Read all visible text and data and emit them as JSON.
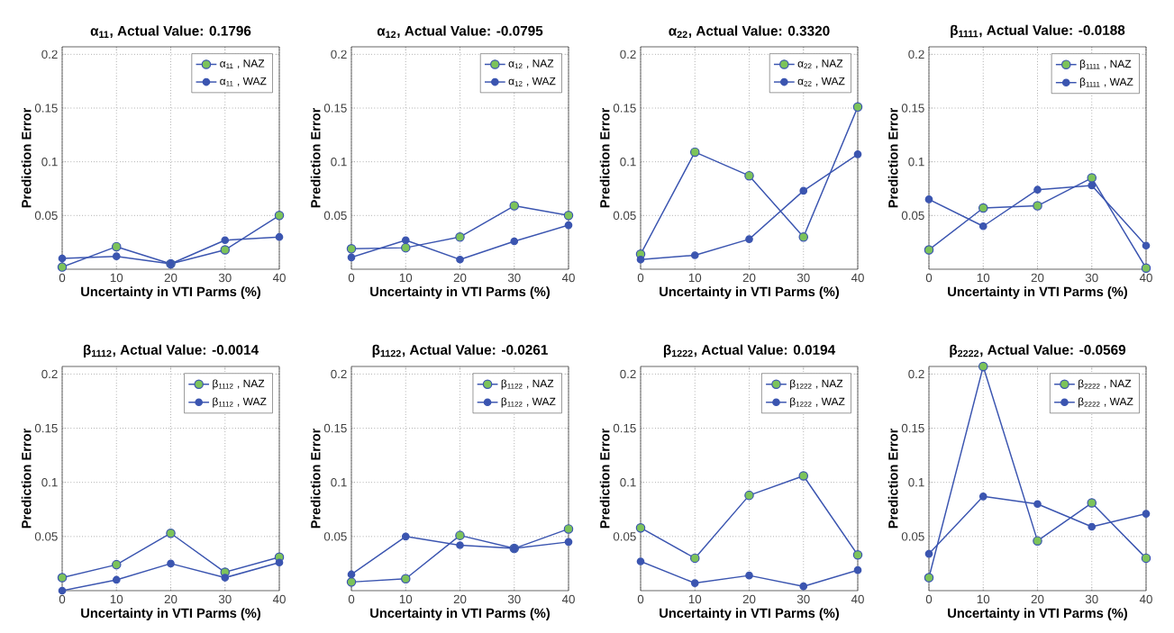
{
  "chart_data": [
    {
      "type": "line",
      "title": "α$_{11}$, Actual Value: 0.1796",
      "xlabel": "Uncertainty in VTI Parms (%)",
      "ylabel": "Prediction Error",
      "x": [
        0,
        10,
        20,
        30,
        40
      ],
      "xlim": [
        0,
        40
      ],
      "ylim": [
        0,
        0.207
      ],
      "xticks": [
        0,
        10,
        20,
        30,
        40
      ],
      "yticks": [
        0.05,
        0.1,
        0.15,
        0.2
      ],
      "grid": true,
      "legend": "top right",
      "marker": "circle",
      "series": [
        {
          "name": "α$_{11}$ , NAZ",
          "color": "#3b55b0",
          "values": [
            0.002,
            0.021,
            0.005,
            0.018,
            0.05
          ]
        },
        {
          "name": "α$_{11}$ , WAZ",
          "color": "#3b55b0",
          "values": [
            0.01,
            0.012,
            0.005,
            0.027,
            0.03
          ]
        }
      ]
    },
    {
      "type": "line",
      "title": "α$_{12}$, Actual Value: -0.0795",
      "xlabel": "Uncertainty in VTI Parms (%)",
      "ylabel": "Prediction Error",
      "x": [
        0,
        10,
        20,
        30,
        40
      ],
      "xlim": [
        0,
        40
      ],
      "ylim": [
        0,
        0.207
      ],
      "xticks": [
        0,
        10,
        20,
        30,
        40
      ],
      "yticks": [
        0.05,
        0.1,
        0.15,
        0.2
      ],
      "grid": true,
      "legend": "top right",
      "marker": "circle",
      "series": [
        {
          "name": "α$_{12}$ , NAZ",
          "color": "#3b55b0",
          "values": [
            0.019,
            0.02,
            0.03,
            0.059,
            0.05
          ]
        },
        {
          "name": "α$_{12}$ , WAZ",
          "color": "#3b55b0",
          "values": [
            0.011,
            0.027,
            0.009,
            0.026,
            0.041
          ]
        }
      ]
    },
    {
      "type": "line",
      "title": "α$_{22}$, Actual Value: 0.3320",
      "xlabel": "Uncertainty in VTI Parms (%)",
      "ylabel": "Prediction Error",
      "x": [
        0,
        10,
        20,
        30,
        40
      ],
      "xlim": [
        0,
        40
      ],
      "ylim": [
        0,
        0.207
      ],
      "xticks": [
        0,
        10,
        20,
        30,
        40
      ],
      "yticks": [
        0.05,
        0.1,
        0.15,
        0.2
      ],
      "grid": true,
      "legend": "top right",
      "marker": "circle",
      "series": [
        {
          "name": "α$_{22}$ , NAZ",
          "color": "#3b55b0",
          "values": [
            0.014,
            0.109,
            0.087,
            0.03,
            0.151
          ]
        },
        {
          "name": "α$_{22}$ , WAZ",
          "color": "#3b55b0",
          "values": [
            0.009,
            0.013,
            0.028,
            0.073,
            0.107
          ]
        }
      ]
    },
    {
      "type": "line",
      "title": "β$_{1111}$, Actual Value: -0.0188",
      "xlabel": "Uncertainty in VTI Parms (%)",
      "ylabel": "Prediction Error",
      "x": [
        0,
        10,
        20,
        30,
        40
      ],
      "xlim": [
        0,
        40
      ],
      "ylim": [
        0,
        0.207
      ],
      "xticks": [
        0,
        10,
        20,
        30,
        40
      ],
      "yticks": [
        0.05,
        0.1,
        0.15,
        0.2
      ],
      "grid": true,
      "legend": "top right",
      "marker": "circle",
      "series": [
        {
          "name": "β$_{1111}$ , NAZ",
          "color": "#3b55b0",
          "values": [
            0.018,
            0.057,
            0.059,
            0.085,
            0.001
          ]
        },
        {
          "name": "β$_{1111}$ , WAZ",
          "color": "#3b55b0",
          "values": [
            0.065,
            0.04,
            0.074,
            0.078,
            0.022
          ]
        }
      ]
    },
    {
      "type": "line",
      "title": "β$_{1112}$, Actual Value: -0.0014",
      "xlabel": "Uncertainty in VTI Parms (%)",
      "ylabel": "Prediction Error",
      "x": [
        0,
        10,
        20,
        30,
        40
      ],
      "xlim": [
        0,
        40
      ],
      "ylim": [
        0,
        0.207
      ],
      "xticks": [
        0,
        10,
        20,
        30,
        40
      ],
      "yticks": [
        0.05,
        0.1,
        0.15,
        0.2
      ],
      "grid": true,
      "legend": "top right",
      "marker": "circle",
      "series": [
        {
          "name": "β$_{1112}$ , NAZ",
          "color": "#3b55b0",
          "values": [
            0.012,
            0.024,
            0.053,
            0.017,
            0.031
          ]
        },
        {
          "name": "β$_{1112}$ , WAZ",
          "color": "#3b55b0",
          "values": [
            0.0,
            0.01,
            0.025,
            0.012,
            0.026
          ]
        }
      ]
    },
    {
      "type": "line",
      "title": "β$_{1122}$, Actual Value: -0.0261",
      "xlabel": "Uncertainty in VTI Parms (%)",
      "ylabel": "Prediction Error",
      "x": [
        0,
        10,
        20,
        30,
        40
      ],
      "xlim": [
        0,
        40
      ],
      "ylim": [
        0,
        0.207
      ],
      "xticks": [
        0,
        10,
        20,
        30,
        40
      ],
      "yticks": [
        0.05,
        0.1,
        0.15,
        0.2
      ],
      "grid": true,
      "legend": "top right",
      "marker": "circle",
      "series": [
        {
          "name": "β$_{1122}$ , NAZ",
          "color": "#3b55b0",
          "values": [
            0.008,
            0.011,
            0.051,
            0.039,
            0.057
          ]
        },
        {
          "name": "β$_{1122}$ , WAZ",
          "color": "#3b55b0",
          "values": [
            0.015,
            0.05,
            0.042,
            0.039,
            0.045
          ]
        }
      ]
    },
    {
      "type": "line",
      "title": "β$_{1222}$, Actual Value: 0.0194",
      "xlabel": "Uncertainty in VTI Parms (%)",
      "ylabel": "Prediction Error",
      "x": [
        0,
        10,
        20,
        30,
        40
      ],
      "xlim": [
        0,
        40
      ],
      "ylim": [
        0,
        0.207
      ],
      "xticks": [
        0,
        10,
        20,
        30,
        40
      ],
      "yticks": [
        0.05,
        0.1,
        0.15,
        0.2
      ],
      "grid": true,
      "legend": "top right",
      "marker": "circle",
      "series": [
        {
          "name": "β$_{1222}$ , NAZ",
          "color": "#3b55b0",
          "values": [
            0.058,
            0.03,
            0.088,
            0.106,
            0.033
          ]
        },
        {
          "name": "β$_{1222}$ , WAZ",
          "color": "#3b55b0",
          "values": [
            0.027,
            0.007,
            0.014,
            0.004,
            0.019
          ]
        }
      ]
    },
    {
      "type": "line",
      "title": "β$_{2222}$, Actual Value: -0.0569",
      "xlabel": "Uncertainty in VTI Parms (%)",
      "ylabel": "Prediction Error",
      "x": [
        0,
        10,
        20,
        30,
        40
      ],
      "xlim": [
        0,
        40
      ],
      "ylim": [
        0,
        0.207
      ],
      "xticks": [
        0,
        10,
        20,
        30,
        40
      ],
      "yticks": [
        0.05,
        0.1,
        0.15,
        0.2
      ],
      "grid": true,
      "legend": "top right",
      "marker": "circle",
      "series": [
        {
          "name": "β$_{2222}$ , NAZ",
          "color": "#3b55b0",
          "values": [
            0.012,
            0.207,
            0.046,
            0.081,
            0.03
          ]
        },
        {
          "name": "β$_{2222}$ , WAZ",
          "color": "#3b55b0",
          "values": [
            0.034,
            0.087,
            0.08,
            0.059,
            0.071
          ]
        }
      ]
    }
  ]
}
